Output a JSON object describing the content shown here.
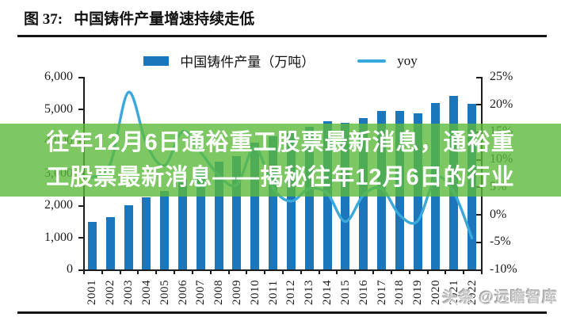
{
  "header": {
    "label": "图 37:",
    "title": "中国铸件产量增速持续走低"
  },
  "legend": [
    {
      "label": "中国铸件产量（万吨）",
      "color": "#1B76BC",
      "type": "bar"
    },
    {
      "label": "yoy",
      "color": "#3BA8DC",
      "type": "line"
    }
  ],
  "overlay": {
    "line1": "往年12月6日通裕重工股票最新消息，通裕重",
    "line2": "工股票最新消息——揭秘往年12月6日的行业",
    "background_color": "#5CBA3C",
    "opacity": 0.8,
    "text_color": "#ffffff"
  },
  "watermark": "头条 @远瞻智库",
  "chart_data": {
    "type": "bar",
    "title": "中国铸件产量增速持续走低",
    "categories": [
      "2001",
      "2002",
      "2003",
      "2004",
      "2005",
      "2006",
      "2007",
      "2008",
      "2009",
      "2010",
      "2011",
      "2012",
      "2013",
      "2014",
      "2015",
      "2016",
      "2017",
      "2018",
      "2019",
      "2020",
      "2021",
      "2022"
    ],
    "series": [
      {
        "name": "中国铸件产量（万吨）",
        "type": "bar",
        "axis": "left",
        "color": "#1B76BC",
        "values": [
          1490,
          1640,
          1990,
          2250,
          2440,
          2810,
          3130,
          3350,
          3530,
          3960,
          4150,
          4250,
          4450,
          4620,
          4560,
          4720,
          4940,
          4935,
          4875,
          5195,
          5405,
          5170
        ]
      },
      {
        "name": "yoy",
        "type": "line",
        "axis": "right",
        "color": "#3BA8DC",
        "values": [
          6.7,
          9.2,
          22.2,
          12.8,
          8.9,
          15.1,
          11.3,
          7.1,
          5.4,
          12.2,
          4.8,
          2.4,
          4.7,
          3.8,
          -1.3,
          3.5,
          4.7,
          -0.1,
          -1.2,
          6.6,
          4.0,
          -4.3
        ]
      }
    ],
    "left_axis": {
      "min": 0,
      "max": 6000,
      "tick_labels": [
        "6,000",
        "5,000",
        "4,000",
        "3,000",
        "2,000",
        "1,000",
        "0"
      ]
    },
    "right_axis": {
      "min": -10,
      "max": 25,
      "tick_labels": [
        "25%",
        "20%",
        "15%",
        "10%",
        "5%",
        "0%",
        "-5%",
        "-10%"
      ]
    },
    "legend_position": "top-center",
    "grid": false
  }
}
